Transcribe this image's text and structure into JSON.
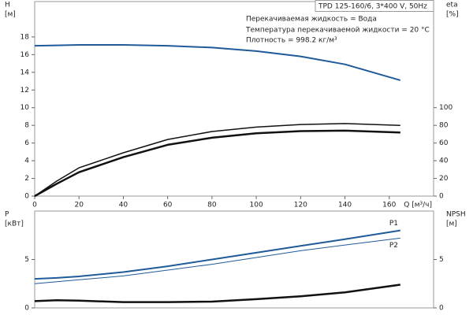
{
  "chart_data": [
    {
      "type": "line",
      "title": "TPD 125-160/6, 3*400 V, 50Hz",
      "annotations": [
        "Перекачиваемая жидкость = Вода",
        "Температура перекачиваемой жидкости = 20 °C",
        "Плотность = 998.2 кг/м³"
      ],
      "y_label": "H",
      "y_unit": "[м]",
      "y2_label": "eta",
      "y2_unit": "[%]",
      "x_label": "Q [м³/ч]",
      "x": [
        0,
        10,
        20,
        40,
        60,
        80,
        100,
        120,
        140,
        165
      ],
      "xlim": [
        0,
        180
      ],
      "xticks": [
        0,
        20,
        40,
        60,
        80,
        100,
        120,
        140,
        160
      ],
      "ylim": [
        0,
        22
      ],
      "yticks": [
        0,
        2,
        4,
        6,
        8,
        10,
        12,
        14,
        16,
        18
      ],
      "y2lim": [
        0,
        220
      ],
      "y2ticks": [
        0,
        20,
        40,
        60,
        80,
        100
      ],
      "series": [
        {
          "color": "#1f5a99",
          "width": 2,
          "values": [
            17.0,
            17.05,
            17.1,
            17.1,
            17.0,
            16.8,
            16.4,
            15.8,
            14.9,
            13.1
          ]
        },
        {
          "color": "#111111",
          "width": 1.5,
          "axis": "y2",
          "values": [
            0,
            17,
            32,
            49,
            64,
            73,
            78,
            81,
            82,
            80
          ]
        },
        {
          "color": "#111111",
          "width": 2.5,
          "axis": "y2",
          "values": [
            0,
            14,
            27,
            44,
            58,
            66,
            71,
            73.5,
            74,
            72
          ]
        }
      ]
    },
    {
      "type": "line",
      "y_label": "P",
      "y_unit": "[кВт]",
      "y2_label": "NPSH",
      "y2_unit": "[м]",
      "x": [
        0,
        10,
        20,
        40,
        60,
        80,
        100,
        120,
        140,
        165
      ],
      "xlim": [
        0,
        180
      ],
      "ylim": [
        0,
        10
      ],
      "yticks": [
        0,
        5
      ],
      "y2lim": [
        0,
        10
      ],
      "y2ticks": [
        0,
        5
      ],
      "series": [
        {
          "name": "P1",
          "color": "#1f5a99",
          "width": 2,
          "values": [
            3.0,
            3.1,
            3.25,
            3.7,
            4.3,
            5.0,
            5.7,
            6.4,
            7.1,
            8.0
          ]
        },
        {
          "name": "P2",
          "color": "#1f5a99",
          "width": 1,
          "values": [
            2.5,
            2.7,
            2.9,
            3.3,
            3.9,
            4.5,
            5.2,
            5.9,
            6.5,
            7.2
          ]
        },
        {
          "color": "#111111",
          "width": 2.5,
          "axis": "y2",
          "values": [
            0.7,
            0.8,
            0.75,
            0.6,
            0.6,
            0.65,
            0.9,
            1.2,
            1.6,
            2.4
          ]
        }
      ]
    }
  ]
}
